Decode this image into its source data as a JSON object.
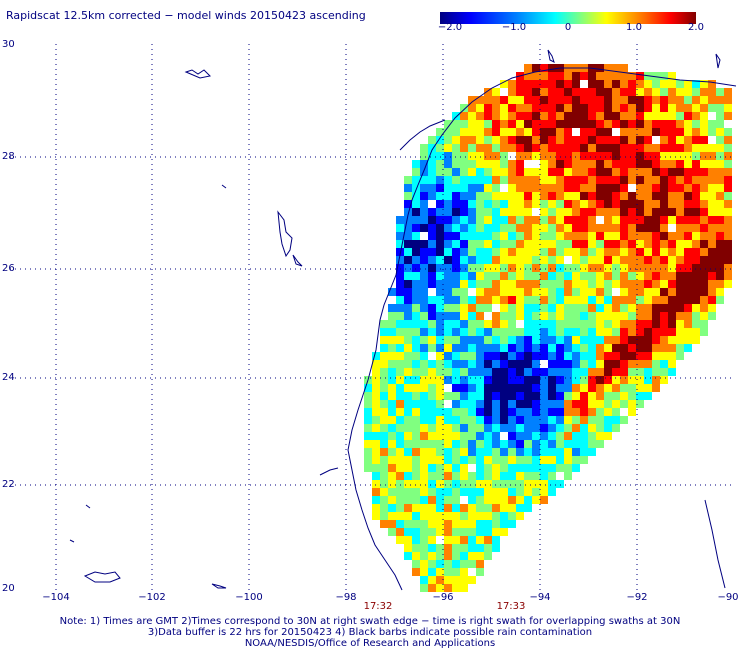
{
  "title": "Rapidscat 12.5km corrected − model winds 20150423 ascending",
  "colorbar": {
    "ticks": [
      "−2.0",
      "−1.0",
      "0",
      "1.0",
      "2.0"
    ],
    "min": -2.0,
    "max": 2.0,
    "colors": [
      "#000080",
      "#0000ff",
      "#0080ff",
      "#00ffff",
      "#80ff80",
      "#ffff00",
      "#ff8000",
      "#ff0000",
      "#800000"
    ]
  },
  "axes": {
    "lon_labels": [
      "−104",
      "−102",
      "−100",
      "−98",
      "−96",
      "−94",
      "−92",
      "−90"
    ],
    "lat_labels": [
      "30",
      "28",
      "26",
      "24",
      "22",
      "20"
    ]
  },
  "pass_times": [
    "17:32",
    "17:33"
  ],
  "notes": [
    "Note: 1) Times are GMT 2)Times correspond to 30N at right swath edge − time is right swath for overlapping swaths at 30N",
    "3)Data buffer is 22 hrs for 20150423 4) Black barbs indicate possible rain contamination",
    "NOAA/NESDIS/Office of Research and Applications"
  ]
}
